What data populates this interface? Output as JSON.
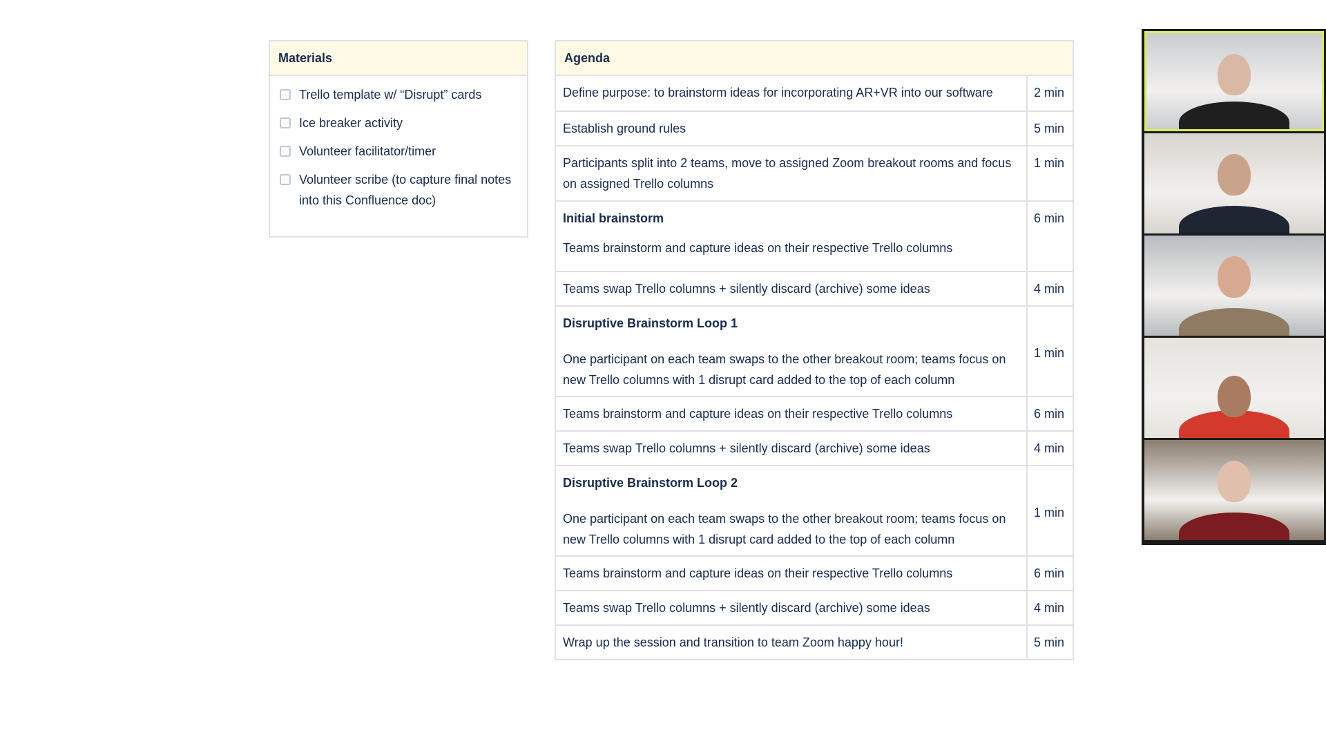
{
  "materials": {
    "title": "Materials",
    "items": [
      {
        "label": "Trello template w/ “Disrupt” cards",
        "checked": false
      },
      {
        "label": "Ice breaker activity",
        "checked": false
      },
      {
        "label": "Volunteer facilitator/timer",
        "checked": false
      },
      {
        "label": "Volunteer scribe (to capture final notes into this Confluence doc)",
        "checked": false
      }
    ]
  },
  "agenda": {
    "title": "Agenda",
    "rows": [
      {
        "heading": "",
        "text": "Define purpose: to brainstorm ideas for incorporating AR+VR into our software",
        "time": "2 min"
      },
      {
        "heading": "",
        "text": "Establish ground rules",
        "time": "5 min"
      },
      {
        "heading": "",
        "text": "Participants split into 2 teams, move  to assigned Zoom breakout rooms and focus on assigned Trello columns",
        "time": "1 min"
      },
      {
        "heading": "Initial brainstorm",
        "text": "Teams brainstorm and capture ideas on their respective Trello columns",
        "time": "6 min"
      },
      {
        "heading": "",
        "text": "Teams swap Trello columns + silently discard (archive) some ideas",
        "time": "4 min"
      },
      {
        "heading": "Disruptive Brainstorm Loop 1",
        "text": "One participant on each team swaps to the other breakout room; teams focus on  new Trello columns with 1 disrupt card  added to the top of each column",
        "time": "1 min"
      },
      {
        "heading": "",
        "text": "Teams brainstorm and capture ideas on their respective Trello columns",
        "time": "6 min"
      },
      {
        "heading": "",
        "text": "Teams swap Trello columns + silently discard (archive) some ideas",
        "time": "4 min"
      },
      {
        "heading": "Disruptive Brainstorm Loop 2",
        "text": "One participant on each team swaps to the other breakout room; teams focus on  new Trello columns with 1 disrupt card  added to the top of each column",
        "time": "1 min"
      },
      {
        "heading": "",
        "text": "Teams brainstorm and capture ideas on their respective Trello columns",
        "time": "6 min"
      },
      {
        "heading": "",
        "text": "Teams swap Trello columns + silently discard (archive) some ideas",
        "time": "4 min"
      },
      {
        "heading": "",
        "text": "Wrap up the session and transition to team Zoom happy hour!",
        "time": "5 min"
      }
    ]
  },
  "video": {
    "active_speaker_color": "#d6ef5a",
    "participants": [
      {
        "active": true,
        "bg": "#c9ccd0",
        "skin": "#d9b9a5",
        "shirt": "#1f1f1f"
      },
      {
        "active": false,
        "bg": "#d8d4cf",
        "skin": "#c9a48a",
        "shirt": "#1e2633"
      },
      {
        "active": false,
        "bg": "#b8bcc0",
        "skin": "#d7a990",
        "shirt": "#8f7b63"
      },
      {
        "active": false,
        "bg": "#e6e3de",
        "skin": "#a97c62",
        "shirt": "#d33a2c"
      },
      {
        "active": false,
        "bg": "#8a7e70",
        "skin": "#e0c0ad",
        "shirt": "#7a1c20"
      }
    ]
  }
}
